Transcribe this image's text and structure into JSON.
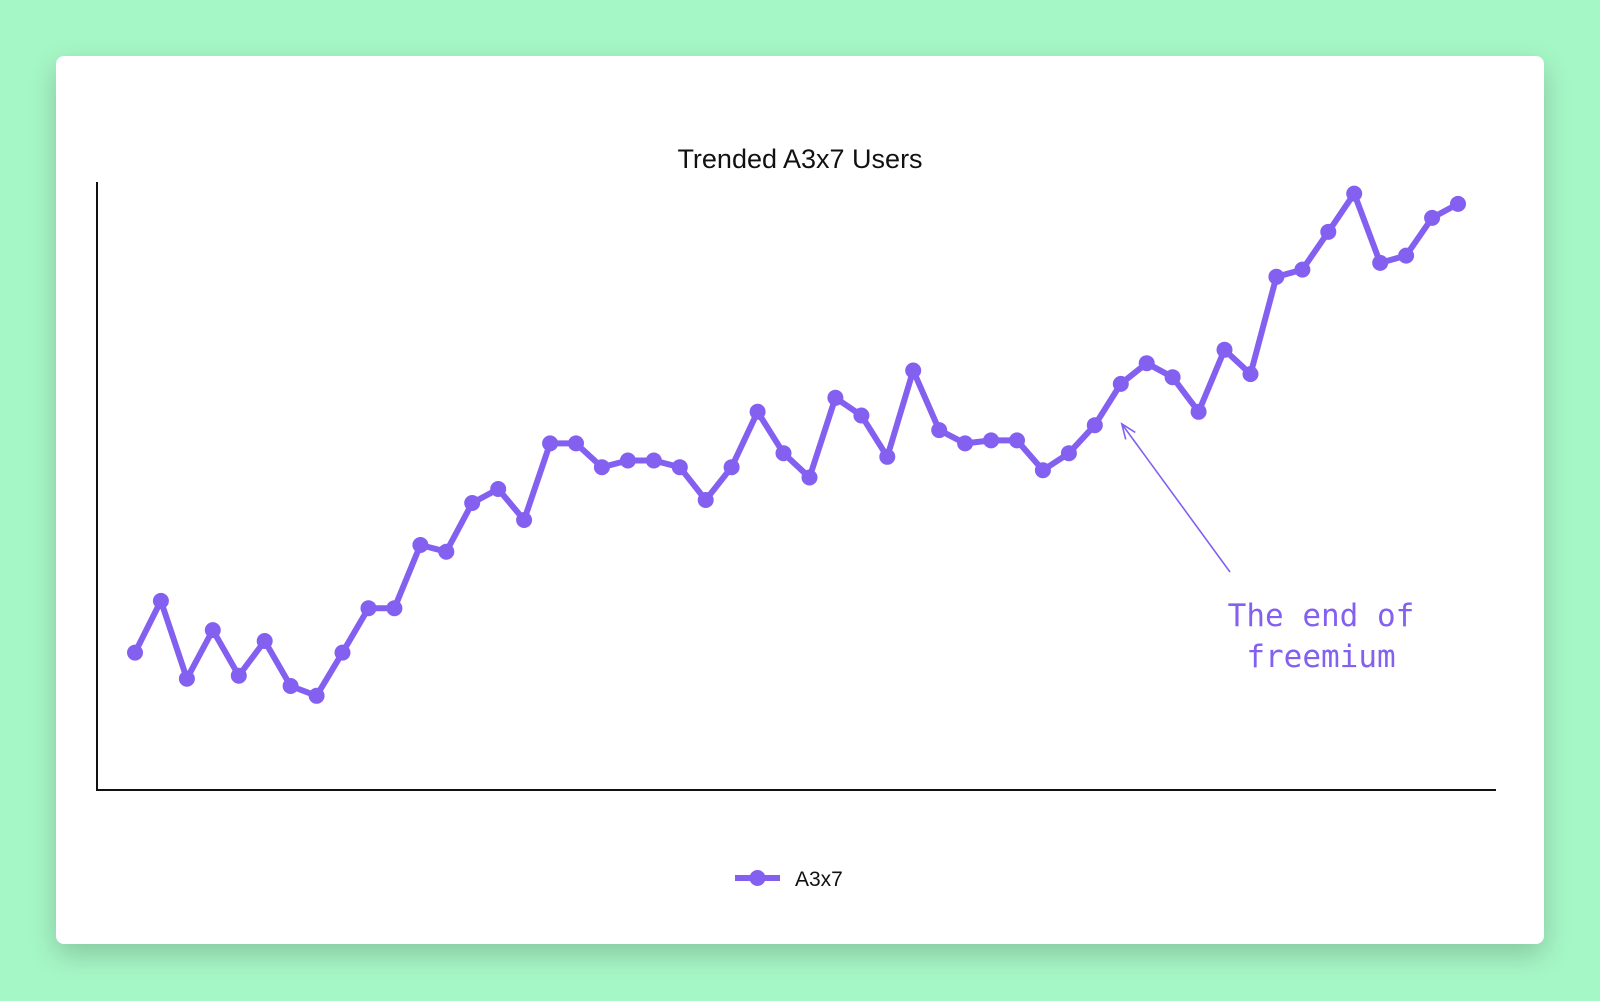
{
  "chart_data": {
    "type": "line",
    "title": "Trended A3x7 Users",
    "xlabel": "",
    "ylabel": "",
    "ylim": [
      0,
      100
    ],
    "grid": false,
    "legend_position": "bottom-center",
    "series": [
      {
        "name": "A3x7",
        "color": "#8360f0",
        "values": [
          22.6,
          31.1,
          18.3,
          26.3,
          18.8,
          24.5,
          17.1,
          15.5,
          22.6,
          29.9,
          29.9,
          40.3,
          39.2,
          47.2,
          49.5,
          44.4,
          57.0,
          57.0,
          53.1,
          54.2,
          54.2,
          53.1,
          47.7,
          53.1,
          62.2,
          55.4,
          51.4,
          64.5,
          61.6,
          54.8,
          69.0,
          59.2,
          57.0,
          57.5,
          57.5,
          52.6,
          55.4,
          60.0,
          66.8,
          70.2,
          67.9,
          62.2,
          72.4,
          68.4,
          84.4,
          85.6,
          91.8,
          98.1,
          86.7,
          87.9,
          94.1,
          96.4
        ]
      }
    ],
    "annotation": {
      "text_lines": [
        "The end of",
        "freemium"
      ],
      "point_index": 38,
      "color": "#8360f0"
    }
  }
}
